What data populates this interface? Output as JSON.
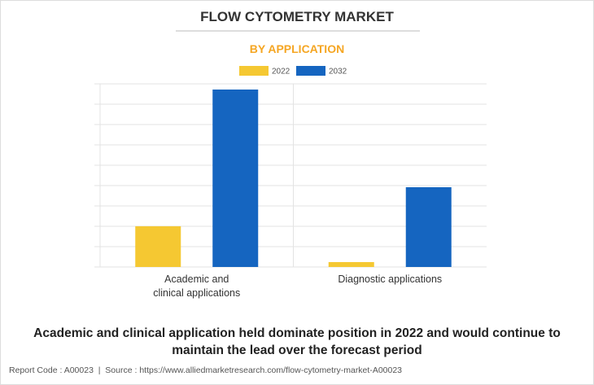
{
  "chart_data": {
    "type": "bar",
    "title": "FLOW CYTOMETRY MARKET",
    "subtitle": "BY APPLICATION",
    "categories": [
      "Academic and clinical applications",
      "Diagnostic applications"
    ],
    "series": [
      {
        "name": "2022",
        "color": "#f5c832",
        "values": [
          2,
          0.24
        ]
      },
      {
        "name": "2032",
        "color": "#1565c0",
        "values": [
          8.72,
          3.92
        ]
      }
    ],
    "ylim": [
      0,
      9
    ],
    "yticks": [
      0,
      1,
      2,
      3,
      4,
      5,
      6,
      7,
      8,
      9
    ],
    "grid": true,
    "legend": "top"
  },
  "caption": "Academic and clinical application held dominate position in 2022 and would continue to maintain the lead over the forecast period",
  "footer": "Report Code : A00023  |  Source : https://www.alliedmarketresearch.com/flow-cytometry-market-A00023"
}
